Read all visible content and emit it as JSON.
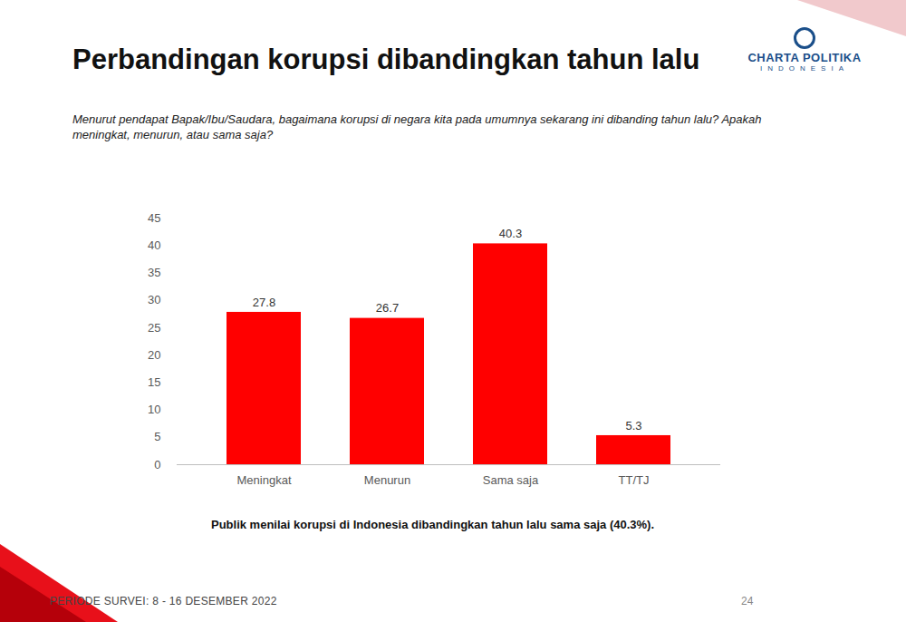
{
  "chart_data": {
    "type": "bar",
    "title": "Perbandingan korupsi dibandingkan tahun lalu",
    "subtitle": "Menurut pendapat Bapak/Ibu/Saudara, bagaimana korupsi di negara kita pada umumnya sekarang ini dibanding tahun lalu? Apakah meningkat, menurun, atau sama saja?",
    "categories": [
      "Meningkat",
      "Menurun",
      "Sama saja",
      "TT/TJ"
    ],
    "values": [
      27.8,
      26.7,
      40.3,
      5.3
    ],
    "color": "#ff0000",
    "ylim": [
      0,
      45
    ],
    "yticks": [
      0,
      5,
      10,
      15,
      20,
      25,
      30,
      35,
      40,
      45
    ],
    "grid": false,
    "data_labels": true,
    "caption": "Publik menilai korupsi di Indonesia dibandingkan tahun lalu sama saja (40.3%)."
  },
  "page": {
    "logo_name": "CHARTA POLITIKA",
    "logo_sub": "INDONESIA",
    "footer": "PERIODE SURVEI: 8 - 16 DESEMBER 2022",
    "page_number": "24"
  }
}
